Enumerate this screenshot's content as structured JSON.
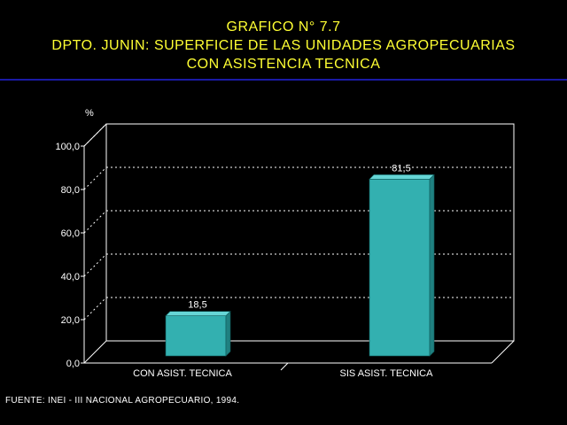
{
  "title": {
    "line1": "GRAFICO N° 7.7",
    "line2": "DPTO. JUNIN: SUPERFICIE DE LAS UNIDADES AGROPECUARIAS",
    "line3": "CON ASISTENCIA TECNICA"
  },
  "source": "FUENTE: INEI - III NACIONAL AGROPECUARIO, 1994.",
  "colors": {
    "title": "#ffff33",
    "rule": "#1a1aa6",
    "bar_front": "#33b0b0",
    "bar_top": "#66d6d6",
    "bar_side": "#1f8080",
    "frame": "#ffffff",
    "grid": "#ffffff"
  },
  "chart_data": {
    "type": "bar",
    "title": "GRAFICO N° 7.7 DPTO. JUNIN: SUPERFICIE DE LAS UNIDADES AGROPECUARIAS CON ASISTENCIA TECNICA",
    "ylabel": "%",
    "xlabel": "",
    "categories": [
      "CON ASIST. TECNICA",
      "SIS ASIST. TECNICA"
    ],
    "values": [
      18.5,
      81.5
    ],
    "value_labels": [
      "18,5",
      "81,5"
    ],
    "ylim": [
      0,
      100
    ],
    "yticks": [
      "0,0",
      "20,0",
      "40,0",
      "60,0",
      "80,0",
      "100,0"
    ],
    "grid": true,
    "legend": "none",
    "style": "3d"
  }
}
